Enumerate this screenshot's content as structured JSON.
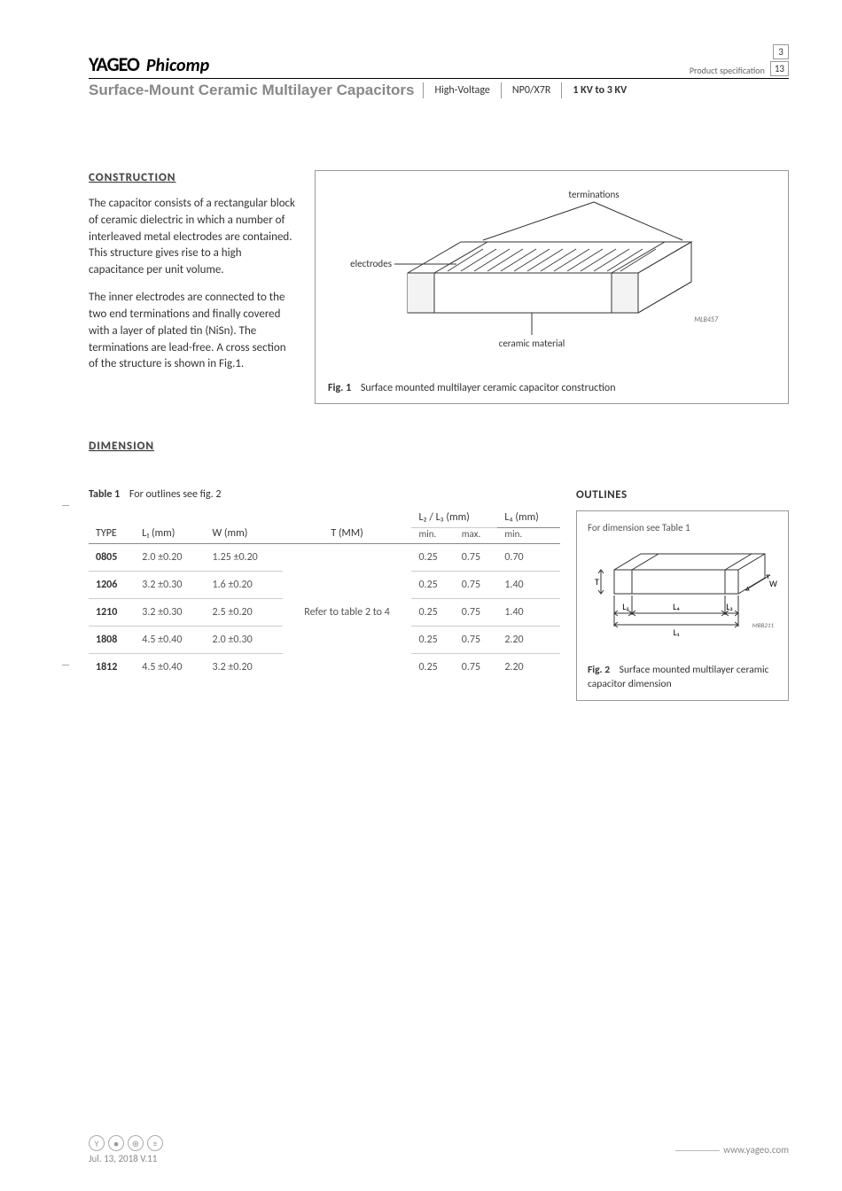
{
  "header": {
    "brand_yageo": "YAGEO",
    "brand_phi": "Phicomp",
    "prodspec_label": "Product specification",
    "page_num": "3",
    "page_total": "13",
    "title": "Surface-Mount Ceramic Multilayer Capacitors",
    "col1": "High-Voltage",
    "col2": "NP0/X7R",
    "col3": "1 KV to 3 KV"
  },
  "construction": {
    "title": "CONSTRUCTION",
    "p1": "The capacitor consists of a rectangular block of ceramic dielectric in which a number of interleaved metal electrodes are contained. This structure gives rise to a high capacitance per unit volume.",
    "p2": "The inner electrodes are connected to the two end terminations and finally covered with a layer of plated tin (NiSn). The terminations are lead-free. A cross section of the structure is shown in Fig.1.",
    "fig1_num": "Fig. 1",
    "fig1_caption": "Surface mounted multilayer ceramic capacitor construction",
    "label_terminations": "terminations",
    "label_electrodes": "electrodes",
    "label_ceramic": "ceramic material",
    "mlb": "MLB457"
  },
  "dimension": {
    "title": "DIMENSION",
    "table_num": "Table 1",
    "table_caption": "For outlines see fig. 2",
    "outlines_title": "OUTLINES",
    "outbox_caption": "For dimension see Table 1",
    "fig2_num": "Fig. 2",
    "fig2_caption": "Surface mounted multilayer ceramic capacitor dimension",
    "mbb": "MBB211",
    "headers": {
      "type": "TYPE",
      "l1": "L₁ (mm)",
      "w": "W (mm)",
      "t": "T (MM)",
      "l23": "L₂ / L₃ (mm)",
      "l4": "L₄ (mm)",
      "min": "min.",
      "max": "max."
    },
    "t_merge": "Refer to table 2 to 4",
    "rows": [
      {
        "type": "0805",
        "l1": "2.0 ±0.20",
        "w": "1.25 ±0.20",
        "min": "0.25",
        "max": "0.75",
        "l4": "0.70"
      },
      {
        "type": "1206",
        "l1": "3.2 ±0.30",
        "w": "1.6 ±0.20",
        "min": "0.25",
        "max": "0.75",
        "l4": "1.40"
      },
      {
        "type": "1210",
        "l1": "3.2 ±0.30",
        "w": "2.5 ±0.20",
        "min": "0.25",
        "max": "0.75",
        "l4": "1.40"
      },
      {
        "type": "1808",
        "l1": "4.5 ±0.40",
        "w": "2.0 ±0.30",
        "min": "0.25",
        "max": "0.75",
        "l4": "2.20"
      },
      {
        "type": "1812",
        "l1": "4.5 ±0.40",
        "w": "3.2 ±0.20",
        "min": "0.25",
        "max": "0.75",
        "l4": "2.20"
      }
    ]
  },
  "outline_labels": {
    "T": "T",
    "W": "W",
    "L1": "L₁",
    "L2": "L₂",
    "L3": "L₃",
    "L4": "L₄"
  },
  "footer": {
    "date": "Jul. 13, 2018 V.11",
    "site": "www.yageo.com"
  }
}
